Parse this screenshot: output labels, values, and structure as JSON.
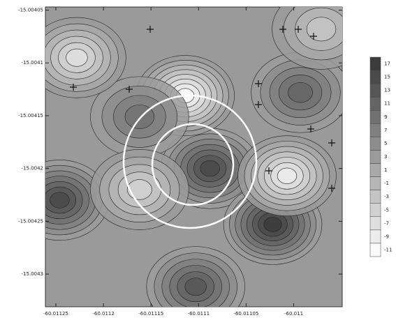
{
  "chart_data": {
    "type": "contour",
    "xlim": [
      -60.011261,
      -60.010949
    ],
    "ylim": [
      -15.004331,
      -15.004047
    ],
    "xticks": [
      -60.01125,
      -60.0112,
      -60.01115,
      -60.0111,
      -60.01105,
      -60.011
    ],
    "yticks": [
      -15.00405,
      -15.0041,
      -15.00415,
      -15.0042,
      -15.00425,
      -15.0043
    ],
    "colorbar_ticks": [
      17,
      15,
      13,
      11,
      9,
      7,
      5,
      3,
      1,
      -1,
      -3,
      -5,
      -7,
      -9,
      -11
    ],
    "features": {
      "x": [
        -60.011088,
        -60.011022,
        -60.011246,
        -60.011114,
        -60.011007,
        -60.011103,
        -60.011162,
        -60.011162,
        -60.011228,
        -60.010993,
        -60.010971
      ],
      "y": [
        -15.0042,
        -15.004253,
        -15.00423,
        -15.004131,
        -15.004207,
        -15.004312,
        -15.004151,
        -15.00422,
        -15.004095,
        -15.004128,
        -15.004068
      ],
      "values": [
        15,
        17,
        15,
        -11,
        -9,
        13,
        9,
        -5,
        -7,
        11,
        -3
      ]
    }
  }
}
